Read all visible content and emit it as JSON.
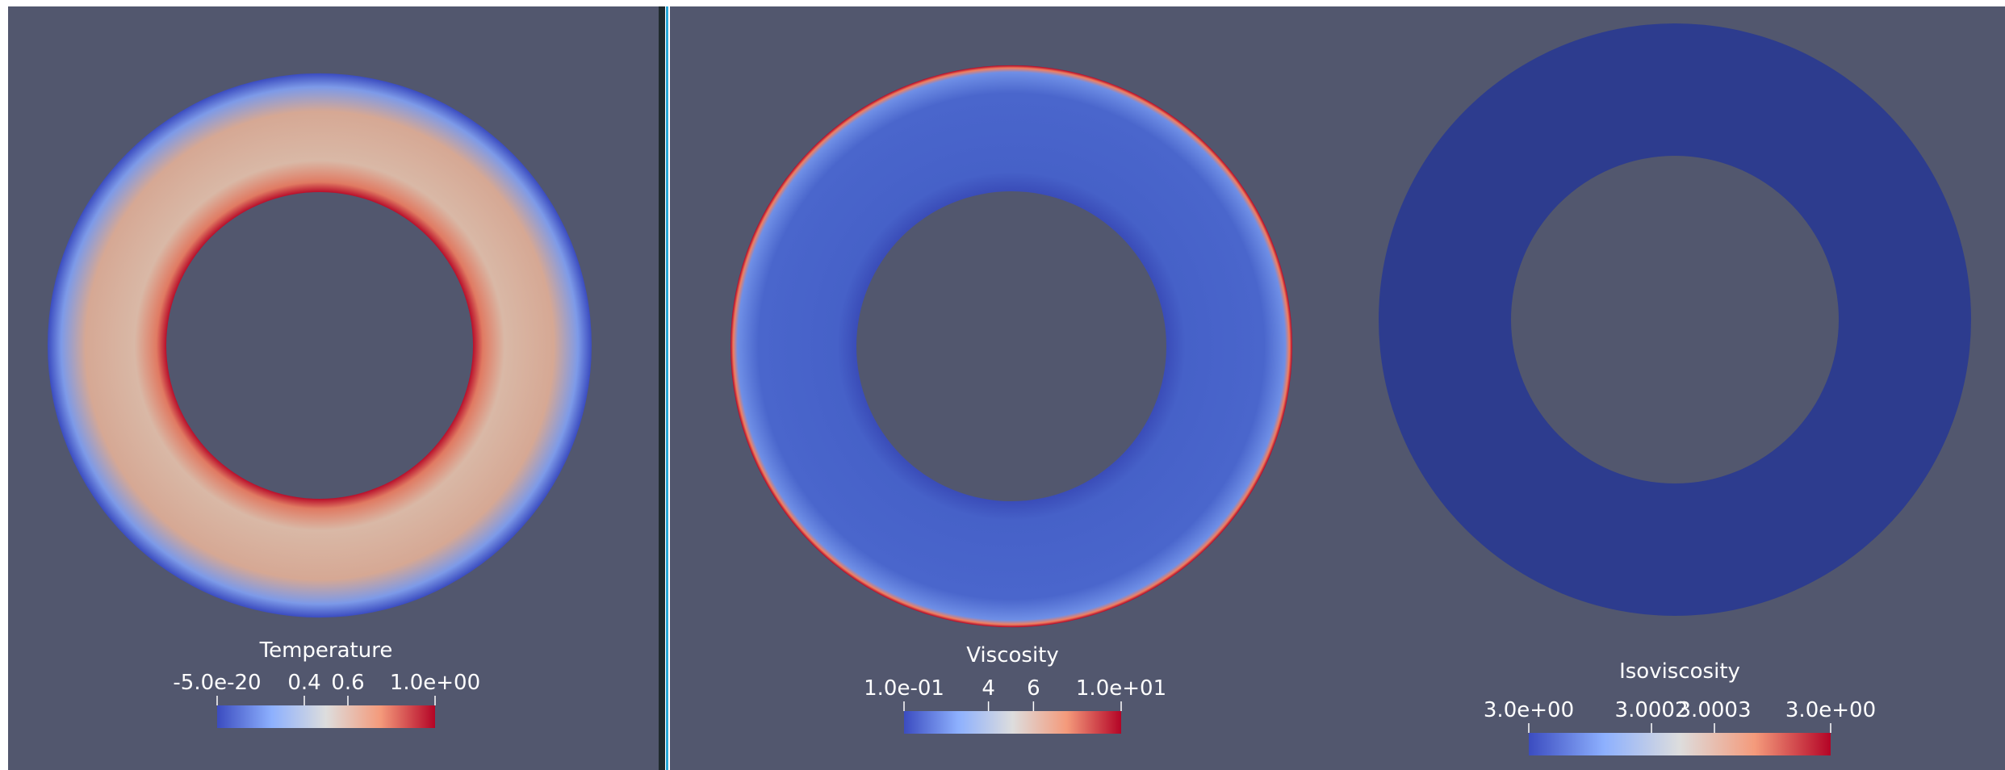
{
  "panels": [
    {
      "legend": {
        "title": "Temperature",
        "ticks": [
          "-5.0e-20",
          "0.4",
          "0.6",
          "1.0e+00"
        ]
      }
    },
    {
      "legend": {
        "title": "Viscosity",
        "ticks": [
          "1.0e-01",
          "4",
          "6",
          "1.0e+01"
        ]
      }
    },
    {
      "legend": {
        "title": "Isoviscosity",
        "ticks": [
          "3.0e+00",
          "3.0002",
          "3.0003",
          "3.0e+00"
        ]
      }
    }
  ]
}
